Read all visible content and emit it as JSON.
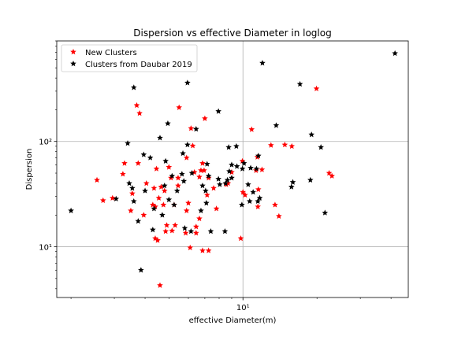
{
  "chart_data": {
    "type": "scatter",
    "title": "Dispersion vs effective Diameter in loglog",
    "xlabel": "effective Diameter(m)",
    "ylabel": "Dispersion",
    "xscale": "log",
    "yscale": "log",
    "xlim": [
      1.75,
      47
    ],
    "ylim": [
      3.3,
      900
    ],
    "grid": true,
    "legend_position": "top-left",
    "x_tick_labels": [
      {
        "value": 10,
        "label": "10¹"
      }
    ],
    "y_tick_labels": [
      {
        "value": 10,
        "label": "10¹"
      },
      {
        "value": 100,
        "label": "10²"
      }
    ],
    "series": [
      {
        "name": "New Clusters",
        "color": "#ff0000",
        "marker": "star",
        "points": [
          [
            2.55,
            43
          ],
          [
            2.7,
            27.5
          ],
          [
            2.95,
            29
          ],
          [
            3.25,
            49
          ],
          [
            3.3,
            62
          ],
          [
            3.5,
            22
          ],
          [
            3.55,
            32
          ],
          [
            3.7,
            220
          ],
          [
            3.75,
            62
          ],
          [
            3.8,
            185
          ],
          [
            3.95,
            20
          ],
          [
            4.05,
            40
          ],
          [
            4.3,
            25
          ],
          [
            4.35,
            36
          ],
          [
            4.4,
            12
          ],
          [
            4.4,
            24
          ],
          [
            4.45,
            55
          ],
          [
            4.5,
            11.5
          ],
          [
            4.55,
            29
          ],
          [
            4.6,
            4.3
          ],
          [
            4.65,
            37
          ],
          [
            4.75,
            25
          ],
          [
            4.8,
            34
          ],
          [
            4.85,
            14
          ],
          [
            4.9,
            16
          ],
          [
            5.0,
            57
          ],
          [
            5.1,
            45
          ],
          [
            5.15,
            14.2
          ],
          [
            5.25,
            25
          ],
          [
            5.3,
            16
          ],
          [
            5.45,
            38
          ],
          [
            5.45,
            45
          ],
          [
            5.5,
            210
          ],
          [
            5.85,
            13.5
          ],
          [
            5.9,
            70
          ],
          [
            5.9,
            22
          ],
          [
            6.0,
            26
          ],
          [
            6.1,
            9.8
          ],
          [
            6.15,
            133
          ],
          [
            6.25,
            91
          ],
          [
            6.35,
            51
          ],
          [
            6.45,
            15.5
          ],
          [
            6.45,
            13.5
          ],
          [
            6.65,
            18.5
          ],
          [
            6.65,
            46
          ],
          [
            6.75,
            53
          ],
          [
            6.85,
            62
          ],
          [
            6.85,
            9.2
          ],
          [
            6.95,
            53
          ],
          [
            7.0,
            165
          ],
          [
            7.15,
            31
          ],
          [
            7.25,
            9.2
          ],
          [
            7.25,
            45
          ],
          [
            7.6,
            36
          ],
          [
            7.8,
            23
          ],
          [
            8.55,
            39
          ],
          [
            8.7,
            40
          ],
          [
            9.0,
            51
          ],
          [
            9.8,
            12
          ],
          [
            9.95,
            65
          ],
          [
            10.0,
            33
          ],
          [
            10.2,
            31
          ],
          [
            10.85,
            130
          ],
          [
            11.3,
            53
          ],
          [
            11.45,
            71
          ],
          [
            11.5,
            24
          ],
          [
            11.55,
            35
          ],
          [
            11.95,
            54
          ],
          [
            13.0,
            92
          ],
          [
            13.5,
            25
          ],
          [
            14.0,
            19.5
          ],
          [
            14.8,
            93
          ],
          [
            15.8,
            90
          ],
          [
            19.9,
            317
          ],
          [
            22.4,
            50
          ],
          [
            23.0,
            47
          ]
        ]
      },
      {
        "name": "Clusters from Daubar 2019",
        "color": "#000000",
        "marker": "star",
        "points": [
          [
            2.0,
            22
          ],
          [
            3.05,
            28.5
          ],
          [
            3.4,
            96
          ],
          [
            3.45,
            40
          ],
          [
            3.55,
            36
          ],
          [
            3.6,
            325
          ],
          [
            3.6,
            27
          ],
          [
            3.75,
            17.5
          ],
          [
            3.85,
            6
          ],
          [
            3.95,
            75
          ],
          [
            4.0,
            34
          ],
          [
            4.2,
            70
          ],
          [
            4.3,
            14.5
          ],
          [
            4.35,
            23
          ],
          [
            4.6,
            108
          ],
          [
            4.7,
            20
          ],
          [
            4.8,
            38
          ],
          [
            4.85,
            65
          ],
          [
            4.95,
            148
          ],
          [
            5.0,
            28
          ],
          [
            5.15,
            47
          ],
          [
            5.25,
            25
          ],
          [
            5.4,
            34
          ],
          [
            5.65,
            49
          ],
          [
            5.7,
            77
          ],
          [
            5.75,
            42
          ],
          [
            5.8,
            15
          ],
          [
            5.95,
            93
          ],
          [
            5.95,
            360
          ],
          [
            6.15,
            14
          ],
          [
            6.2,
            50
          ],
          [
            6.45,
            131
          ],
          [
            6.75,
            22
          ],
          [
            6.85,
            38
          ],
          [
            7.05,
            34
          ],
          [
            7.1,
            26
          ],
          [
            7.15,
            61
          ],
          [
            7.25,
            47
          ],
          [
            7.4,
            14
          ],
          [
            7.95,
            193
          ],
          [
            7.95,
            44
          ],
          [
            8.05,
            39
          ],
          [
            8.45,
            14
          ],
          [
            8.5,
            40
          ],
          [
            8.65,
            43
          ],
          [
            8.75,
            88
          ],
          [
            8.8,
            52
          ],
          [
            9.0,
            60
          ],
          [
            9.0,
            45
          ],
          [
            9.4,
            90
          ],
          [
            9.45,
            58
          ],
          [
            9.9,
            25
          ],
          [
            9.95,
            55
          ],
          [
            10.1,
            62
          ],
          [
            10.5,
            39
          ],
          [
            10.65,
            27
          ],
          [
            10.75,
            56
          ],
          [
            11.0,
            33
          ],
          [
            11.35,
            55
          ],
          [
            11.5,
            27
          ],
          [
            11.55,
            73
          ],
          [
            11.7,
            29
          ],
          [
            12.0,
            555
          ],
          [
            13.65,
            142
          ],
          [
            15.75,
            37
          ],
          [
            15.95,
            41
          ],
          [
            17.05,
            350
          ],
          [
            18.8,
            43
          ],
          [
            19.0,
            116
          ],
          [
            20.75,
            88
          ],
          [
            21.55,
            21
          ],
          [
            41.5,
            685
          ]
        ]
      }
    ]
  }
}
